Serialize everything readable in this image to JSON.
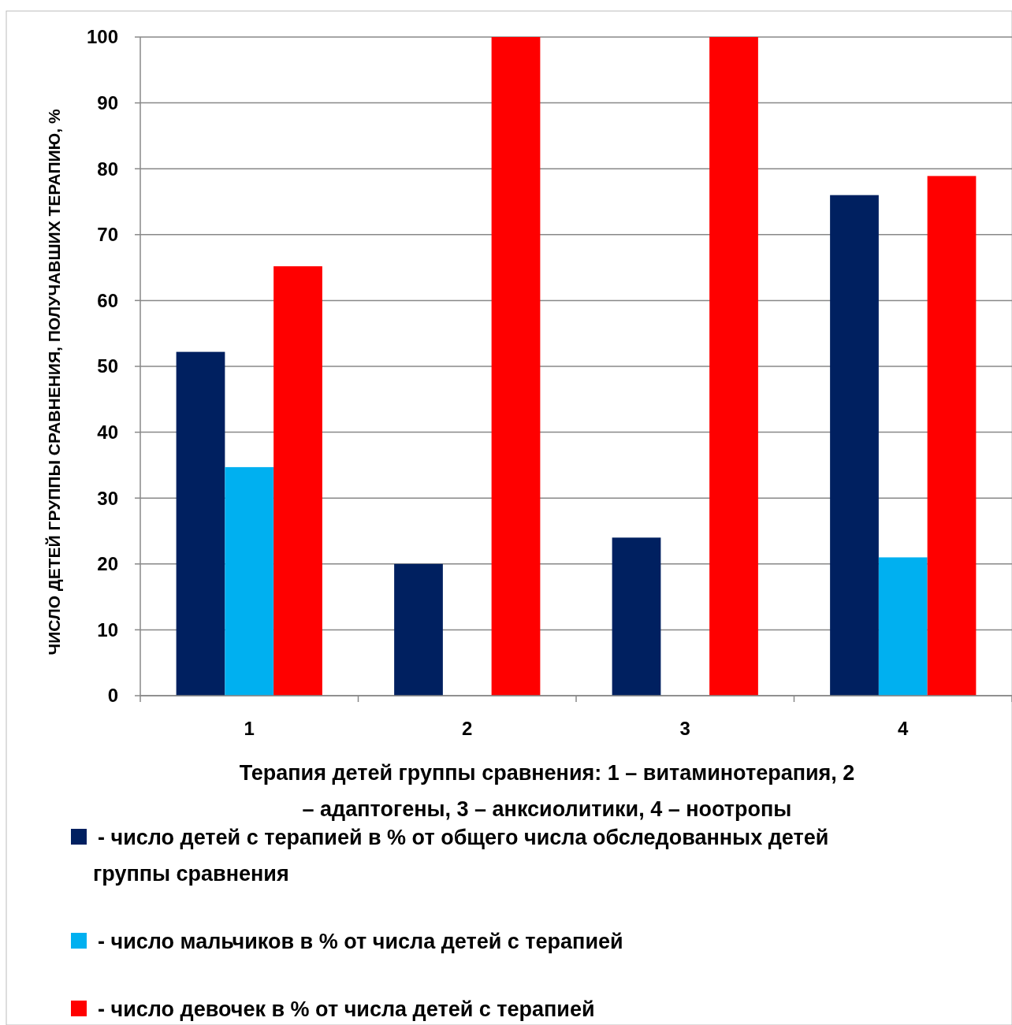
{
  "chart_data": {
    "type": "bar",
    "xlabel": "Терапия детей группы сравнения: 1 – витаминотерапия, 2 – адаптогены, 3 – анксиолитики, 4 – ноотропы",
    "ylabel": "ЧИСЛО ДЕТЕЙ ГРУППЫ СРАВНЕНИЯ, ПОЛУЧАВШИХ ТЕРАПИЮ, %",
    "categories": [
      "1",
      "2",
      "3",
      "4"
    ],
    "series": [
      {
        "name": "- число детей с терапией в % от общего числа обследованных детей группы сравнения",
        "color": "#002060",
        "values": [
          52.2,
          20,
          24,
          76
        ]
      },
      {
        "name": "- число мальчиков в % от числа детей с терапией",
        "color": "#00b0f0",
        "values": [
          34.7,
          0,
          0,
          21
        ]
      },
      {
        "name": "- число девочек в % от числа детей с терапией",
        "color": "#ff0000",
        "values": [
          65.2,
          100,
          100,
          78.9
        ]
      }
    ],
    "ylim": [
      0,
      100
    ],
    "yticks": [
      0,
      10,
      20,
      30,
      40,
      50,
      60,
      70,
      80,
      90,
      100
    ],
    "grid": "y",
    "legend": "bottom"
  }
}
